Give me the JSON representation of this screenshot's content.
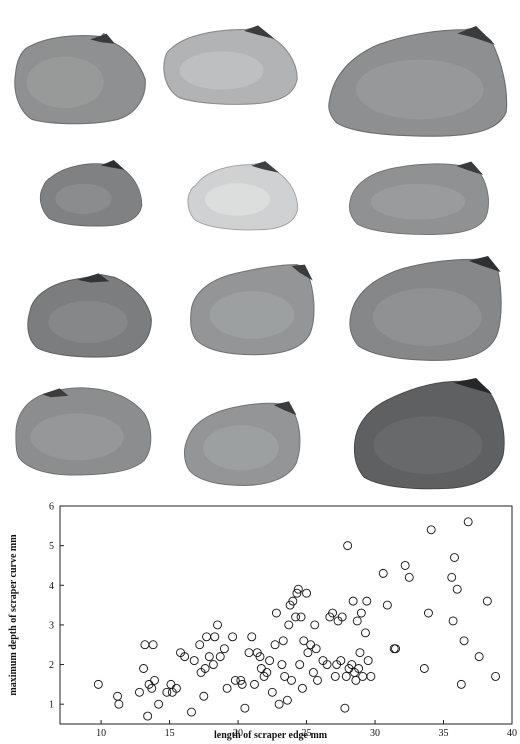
{
  "specimen_photos": {
    "rows": 4,
    "columns": 3,
    "count": 12,
    "tone": [
      "medium",
      "light",
      "medium",
      "medium",
      "pale",
      "medium",
      "medium-dark",
      "medium",
      "medium",
      "medium",
      "medium",
      "dark"
    ]
  },
  "chart_data": {
    "type": "scatter",
    "title": "",
    "xlabel": "length of scraper edge mm",
    "ylabel": "maximum depth of scraper curve mm",
    "xlim": [
      7,
      40
    ],
    "ylim": [
      0.5,
      6
    ],
    "xticks": [
      10,
      15,
      20,
      25,
      30,
      35,
      40
    ],
    "yticks": [
      1,
      2,
      3,
      4,
      5,
      6
    ],
    "grid": false,
    "marker": "open-circle",
    "points": [
      [
        9.8,
        1.5
      ],
      [
        11.2,
        1.2
      ],
      [
        11.3,
        1.0
      ],
      [
        12.8,
        1.3
      ],
      [
        13.1,
        1.9
      ],
      [
        13.2,
        2.5
      ],
      [
        13.5,
        1.5
      ],
      [
        13.7,
        1.4
      ],
      [
        13.8,
        2.5
      ],
      [
        13.9,
        1.6
      ],
      [
        13.4,
        0.7
      ],
      [
        14.2,
        1.0
      ],
      [
        14.8,
        1.3
      ],
      [
        15.1,
        1.5
      ],
      [
        15.2,
        1.3
      ],
      [
        15.5,
        1.4
      ],
      [
        15.8,
        2.3
      ],
      [
        16.1,
        2.2
      ],
      [
        16.6,
        0.8
      ],
      [
        16.8,
        2.1
      ],
      [
        17.2,
        2.5
      ],
      [
        17.3,
        1.8
      ],
      [
        17.5,
        1.2
      ],
      [
        17.6,
        1.9
      ],
      [
        17.7,
        2.7
      ],
      [
        17.9,
        2.2
      ],
      [
        18.2,
        2.0
      ],
      [
        18.3,
        2.7
      ],
      [
        18.5,
        3.0
      ],
      [
        18.7,
        2.2
      ],
      [
        19.0,
        2.4
      ],
      [
        19.2,
        1.4
      ],
      [
        19.6,
        2.7
      ],
      [
        19.8,
        1.6
      ],
      [
        20.2,
        1.6
      ],
      [
        20.3,
        1.5
      ],
      [
        20.5,
        0.9
      ],
      [
        20.8,
        2.3
      ],
      [
        21.0,
        2.7
      ],
      [
        21.2,
        1.5
      ],
      [
        21.4,
        2.3
      ],
      [
        21.6,
        2.2
      ],
      [
        21.7,
        1.9
      ],
      [
        21.9,
        1.7
      ],
      [
        22.1,
        1.8
      ],
      [
        22.3,
        2.1
      ],
      [
        22.5,
        1.3
      ],
      [
        22.7,
        2.5
      ],
      [
        22.8,
        3.3
      ],
      [
        23.0,
        1.0
      ],
      [
        23.2,
        2.0
      ],
      [
        23.3,
        2.6
      ],
      [
        23.4,
        1.7
      ],
      [
        23.6,
        1.1
      ],
      [
        23.7,
        3.0
      ],
      [
        23.8,
        3.5
      ],
      [
        23.9,
        1.6
      ],
      [
        24.0,
        3.6
      ],
      [
        24.2,
        3.2
      ],
      [
        24.3,
        3.8
      ],
      [
        24.4,
        3.9
      ],
      [
        24.5,
        2.0
      ],
      [
        24.6,
        3.2
      ],
      [
        24.7,
        1.4
      ],
      [
        24.8,
        2.6
      ],
      [
        25.0,
        3.8
      ],
      [
        25.1,
        2.3
      ],
      [
        25.3,
        2.5
      ],
      [
        25.5,
        1.8
      ],
      [
        25.6,
        3.0
      ],
      [
        25.7,
        2.4
      ],
      [
        25.8,
        1.6
      ],
      [
        26.2,
        2.1
      ],
      [
        26.5,
        2.0
      ],
      [
        26.7,
        3.2
      ],
      [
        26.9,
        3.3
      ],
      [
        27.1,
        1.7
      ],
      [
        27.2,
        2.0
      ],
      [
        27.3,
        3.1
      ],
      [
        27.5,
        2.1
      ],
      [
        27.6,
        3.2
      ],
      [
        27.8,
        0.9
      ],
      [
        27.9,
        1.7
      ],
      [
        28.0,
        5.0
      ],
      [
        28.1,
        1.9
      ],
      [
        28.3,
        2.0
      ],
      [
        28.4,
        3.6
      ],
      [
        28.5,
        1.8
      ],
      [
        28.6,
        1.6
      ],
      [
        28.7,
        3.1
      ],
      [
        28.8,
        1.9
      ],
      [
        28.9,
        2.3
      ],
      [
        29.0,
        3.3
      ],
      [
        29.1,
        1.7
      ],
      [
        29.3,
        2.8
      ],
      [
        29.4,
        3.6
      ],
      [
        29.5,
        2.1
      ],
      [
        29.7,
        1.7
      ],
      [
        30.6,
        4.3
      ],
      [
        30.9,
        3.5
      ],
      [
        31.4,
        2.4
      ],
      [
        31.5,
        2.4
      ],
      [
        32.2,
        4.5
      ],
      [
        32.5,
        4.2
      ],
      [
        33.6,
        1.9
      ],
      [
        33.9,
        3.3
      ],
      [
        34.1,
        5.4
      ],
      [
        35.6,
        4.2
      ],
      [
        35.7,
        3.1
      ],
      [
        35.8,
        4.7
      ],
      [
        36.0,
        3.9
      ],
      [
        36.3,
        1.5
      ],
      [
        36.5,
        2.6
      ],
      [
        36.8,
        5.6
      ],
      [
        37.6,
        2.2
      ],
      [
        38.2,
        3.6
      ],
      [
        38.8,
        1.7
      ]
    ]
  }
}
